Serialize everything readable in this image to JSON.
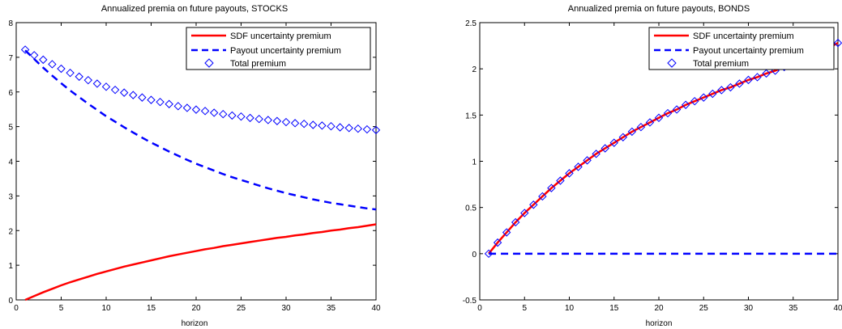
{
  "chart_data": [
    {
      "type": "line",
      "title": "Annualized premia on future payouts, STOCKS",
      "xlabel": "horizon",
      "ylabel": "",
      "xlim": [
        0,
        40
      ],
      "ylim": [
        0,
        8
      ],
      "xticks": [
        "0",
        "5",
        "10",
        "15",
        "20",
        "25",
        "30",
        "35",
        "40"
      ],
      "yticks": [
        "0",
        "1",
        "2",
        "3",
        "4",
        "5",
        "6",
        "7",
        "8"
      ],
      "grid": false,
      "legend_position": "top-right",
      "x": [
        1,
        2,
        3,
        4,
        5,
        6,
        7,
        8,
        9,
        10,
        11,
        12,
        13,
        14,
        15,
        16,
        17,
        18,
        19,
        20,
        21,
        22,
        23,
        24,
        25,
        26,
        27,
        28,
        29,
        30,
        31,
        32,
        33,
        34,
        35,
        36,
        37,
        38,
        39,
        40
      ],
      "series": [
        {
          "name": "SDF uncertainty premium",
          "color": "#ff0000",
          "style": "solid",
          "values": [
            0.0,
            0.11,
            0.22,
            0.32,
            0.42,
            0.51,
            0.59,
            0.67,
            0.75,
            0.82,
            0.89,
            0.96,
            1.02,
            1.08,
            1.14,
            1.2,
            1.26,
            1.31,
            1.36,
            1.41,
            1.46,
            1.5,
            1.55,
            1.59,
            1.63,
            1.67,
            1.71,
            1.75,
            1.79,
            1.82,
            1.86,
            1.89,
            1.93,
            1.96,
            2.0,
            2.03,
            2.07,
            2.1,
            2.14,
            2.18
          ]
        },
        {
          "name": "Payout uncertainty premium",
          "color": "#0000ff",
          "style": "dashed",
          "values": [
            7.2,
            6.95,
            6.7,
            6.47,
            6.25,
            6.04,
            5.85,
            5.66,
            5.48,
            5.3,
            5.14,
            4.98,
            4.83,
            4.68,
            4.54,
            4.41,
            4.28,
            4.16,
            4.04,
            3.93,
            3.83,
            3.73,
            3.63,
            3.54,
            3.46,
            3.38,
            3.3,
            3.22,
            3.15,
            3.08,
            3.02,
            2.96,
            2.9,
            2.85,
            2.8,
            2.76,
            2.72,
            2.68,
            2.64,
            2.61
          ]
        },
        {
          "name": "Total premium",
          "color": "#0000ff",
          "style": "diamond",
          "values": [
            7.22,
            7.06,
            6.93,
            6.8,
            6.67,
            6.55,
            6.44,
            6.34,
            6.24,
            6.15,
            6.06,
            5.98,
            5.91,
            5.84,
            5.77,
            5.71,
            5.65,
            5.59,
            5.54,
            5.49,
            5.45,
            5.4,
            5.36,
            5.32,
            5.29,
            5.25,
            5.22,
            5.19,
            5.16,
            5.13,
            5.1,
            5.08,
            5.05,
            5.03,
            5.01,
            4.98,
            4.96,
            4.94,
            4.92,
            4.9
          ]
        }
      ]
    },
    {
      "type": "line",
      "title": "Annualized premia on future payouts, BONDS",
      "xlabel": "horizon",
      "ylabel": "",
      "xlim": [
        0,
        40
      ],
      "ylim": [
        -0.5,
        2.5
      ],
      "xticks": [
        "0",
        "5",
        "10",
        "15",
        "20",
        "25",
        "30",
        "35",
        "40"
      ],
      "yticks": [
        "-0.5",
        "0",
        "0.5",
        "1",
        "1.5",
        "2",
        "2.5"
      ],
      "grid": false,
      "legend_position": "top-right",
      "x": [
        1,
        2,
        3,
        4,
        5,
        6,
        7,
        8,
        9,
        10,
        11,
        12,
        13,
        14,
        15,
        16,
        17,
        18,
        19,
        20,
        21,
        22,
        23,
        24,
        25,
        26,
        27,
        28,
        29,
        30,
        31,
        32,
        33,
        34,
        35,
        36,
        37,
        38,
        39,
        40
      ],
      "series": [
        {
          "name": "SDF uncertainty premium",
          "color": "#ff0000",
          "style": "solid",
          "values": [
            0.0,
            0.12,
            0.23,
            0.34,
            0.44,
            0.53,
            0.62,
            0.71,
            0.79,
            0.87,
            0.94,
            1.01,
            1.08,
            1.14,
            1.2,
            1.26,
            1.32,
            1.37,
            1.42,
            1.47,
            1.52,
            1.56,
            1.61,
            1.65,
            1.69,
            1.73,
            1.77,
            1.8,
            1.84,
            1.88,
            1.91,
            1.95,
            1.98,
            2.02,
            2.06,
            2.1,
            2.14,
            2.18,
            2.23,
            2.28
          ]
        },
        {
          "name": "Payout uncertainty premium",
          "color": "#0000ff",
          "style": "dashed",
          "values": [
            0,
            0,
            0,
            0,
            0,
            0,
            0,
            0,
            0,
            0,
            0,
            0,
            0,
            0,
            0,
            0,
            0,
            0,
            0,
            0,
            0,
            0,
            0,
            0,
            0,
            0,
            0,
            0,
            0,
            0,
            0,
            0,
            0,
            0,
            0,
            0,
            0,
            0,
            0,
            0
          ]
        },
        {
          "name": "Total premium",
          "color": "#0000ff",
          "style": "diamond",
          "values": [
            0.0,
            0.12,
            0.23,
            0.34,
            0.44,
            0.53,
            0.62,
            0.71,
            0.79,
            0.87,
            0.94,
            1.01,
            1.08,
            1.14,
            1.2,
            1.26,
            1.32,
            1.37,
            1.42,
            1.47,
            1.52,
            1.56,
            1.61,
            1.65,
            1.69,
            1.73,
            1.77,
            1.8,
            1.84,
            1.88,
            1.91,
            1.95,
            1.98,
            2.02,
            2.06,
            2.1,
            2.14,
            2.18,
            2.23,
            2.28
          ]
        }
      ]
    }
  ]
}
